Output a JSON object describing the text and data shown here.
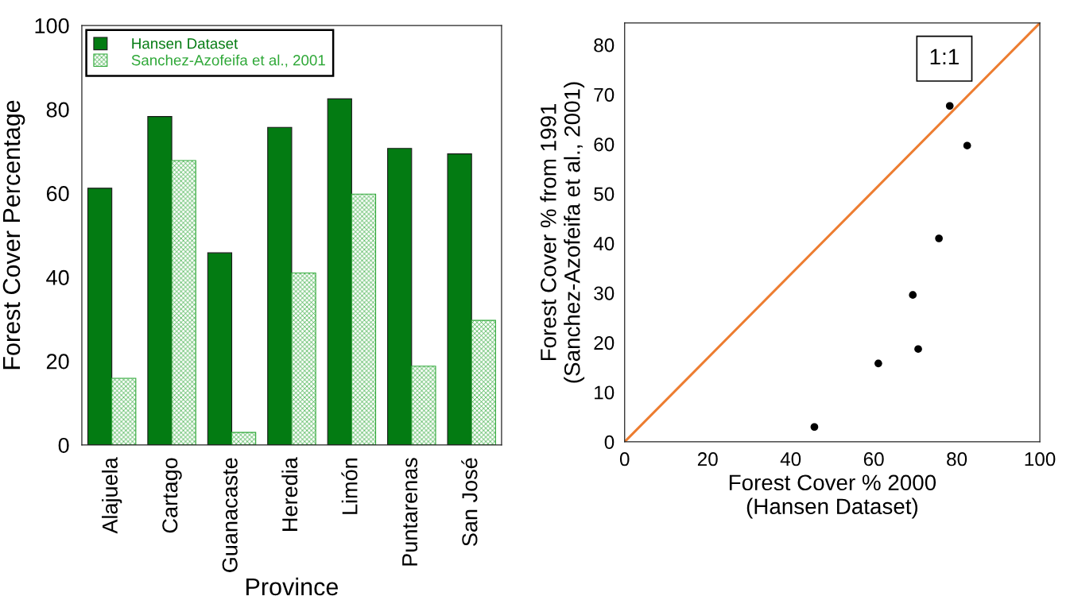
{
  "chart_data": [
    {
      "type": "bar",
      "categories": [
        "Alajuela",
        "Cartago",
        "Guanacaste",
        "Heredia",
        "Limón",
        "Puntarenas",
        "San José"
      ],
      "series": [
        {
          "name": "Hansen Dataset",
          "color": "#037b12",
          "values": [
            61.2,
            78.3,
            45.8,
            75.7,
            82.5,
            70.7,
            69.4
          ]
        },
        {
          "name": "Sanchez-Azofeifa et al., 2001",
          "color": "#2fa838",
          "values": [
            15.9,
            67.8,
            3.0,
            41.0,
            59.8,
            18.8,
            29.7
          ]
        }
      ],
      "xlabel": "Province",
      "ylabel": "Forest Cover Percentage",
      "ylim": [
        0,
        100
      ],
      "yticks": [
        0,
        20,
        40,
        60,
        80,
        100
      ],
      "legend": "top left",
      "grid": false
    },
    {
      "type": "scatter",
      "series": [
        {
          "x": [
            61.1,
            78.3,
            45.7,
            75.7,
            82.5,
            70.7,
            69.4
          ],
          "values": [
            15.8,
            67.7,
            3.0,
            41.0,
            59.7,
            18.7,
            29.6
          ],
          "color": "#000000",
          "marker": "circle"
        },
        {
          "name": "1:1",
          "type": "line",
          "x": [
            0,
            100
          ],
          "values": [
            0,
            84.4
          ],
          "color": "#ed7d31",
          "line_style": "solid"
        }
      ],
      "xlabel": "Forest Cover % 2000\n(Hansen Dataset)",
      "ylabel": "Forest Cover % from 1991\n(Sanchez-Azofeifa et al., 2001)",
      "xlim": [
        0,
        100
      ],
      "xticks": [
        0,
        20,
        40,
        60,
        80,
        100
      ],
      "ylim": [
        0,
        84.4
      ],
      "yticks": [
        0,
        10,
        20,
        30,
        40,
        50,
        60,
        70,
        80
      ],
      "grid": false
    }
  ]
}
